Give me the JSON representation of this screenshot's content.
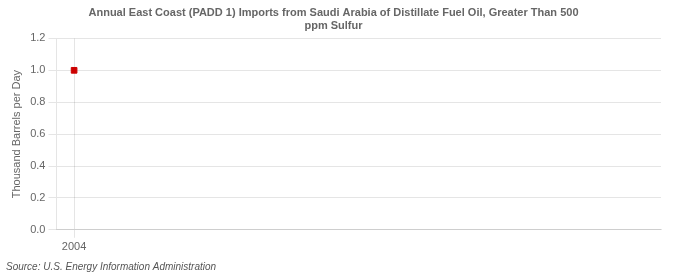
{
  "chart_data": {
    "type": "scatter",
    "title": "Annual East Coast (PADD 1) Imports from Saudi Arabia of Distillate Fuel Oil, Greater Than 500\nppm Sulfur",
    "ylabel": "Thousand Barrels per Day",
    "source": "Source: U.S. Energy Information Administration",
    "x": [
      2004
    ],
    "values": [
      1.0
    ],
    "color": "#cc0000",
    "marker": "square",
    "xlim": [
      2003.4,
      2024.0
    ],
    "ylim": [
      0.0,
      1.2
    ],
    "xticks": [
      2004
    ],
    "yticks": [
      {
        "value": 0.0,
        "label": "0.0"
      },
      0.2,
      0.4,
      0.6,
      0.8,
      {
        "value": 1.0,
        "label": "1.0"
      },
      1.2
    ],
    "grid": true
  }
}
